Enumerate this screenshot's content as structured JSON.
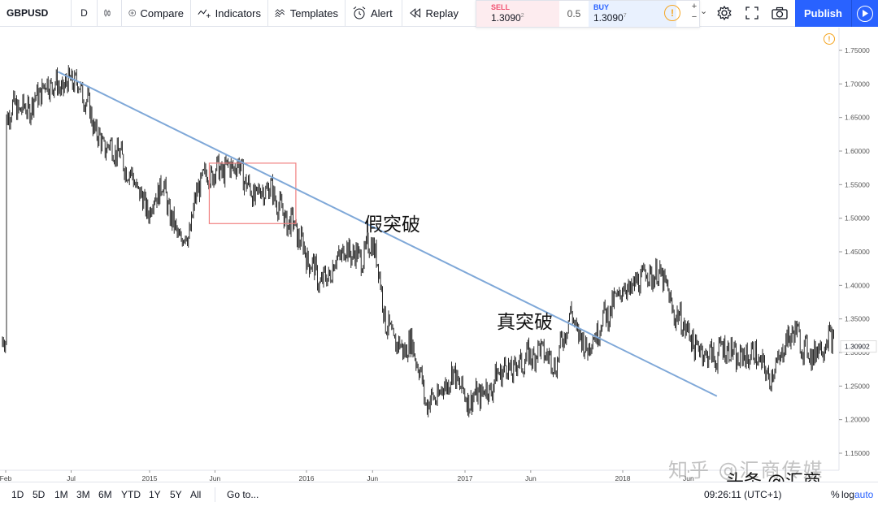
{
  "toolbar": {
    "symbol": "GBPUSD",
    "interval": "D",
    "compare": "Compare",
    "indicators": "Indicators",
    "templates": "Templates",
    "alert": "Alert",
    "replay": "Replay",
    "publish": "Publish"
  },
  "trade": {
    "sell_label": "SELL",
    "sell_price": "1.3090",
    "sell_sup": "2",
    "spread": "0.5",
    "buy_label": "BUY",
    "buy_price": "1.3090",
    "buy_sup": "7",
    "warn": "!",
    "qty_plus": "+",
    "qty_minus": "−",
    "chevron": "⌄"
  },
  "annotations": {
    "false_breakout": "假突破",
    "true_breakout": "真突破"
  },
  "watermark": {
    "text": "知乎 @汇商传媒",
    "overlay": "头条 @汇商"
  },
  "bottom": {
    "ranges": [
      "1D",
      "5D",
      "1M",
      "3M",
      "6M",
      "YTD",
      "1Y",
      "5Y",
      "All"
    ],
    "goto": "Go to...",
    "time": "09:26:11 (UTC+1)",
    "percent": "%",
    "log": "log",
    "auto": "auto"
  },
  "colors": {
    "accent": "#2962ff",
    "trendline": "#7fa8d8",
    "box": "#f08080",
    "candle": "#2a2a2a"
  },
  "chart_data": {
    "type": "candlestick",
    "symbol": "GBPUSD",
    "x_tick_labels": [
      "Feb",
      "Jul",
      "2015",
      "Jun",
      "2016",
      "Jun",
      "2017",
      "Jun",
      "2018",
      "Jun"
    ],
    "y_tick_labels": [
      "1.75000",
      "1.70000",
      "1.65000",
      "1.60000",
      "1.55000",
      "1.50000",
      "1.45000",
      "1.40000",
      "1.35000",
      "1.30000",
      "1.25000",
      "1.20000",
      "1.15000"
    ],
    "ylim": [
      1.14,
      1.785
    ],
    "last_price_label": "1.30902",
    "close_path": [
      [
        "2014-02",
        1.64
      ],
      [
        "2014-03",
        1.665
      ],
      [
        "2014-04",
        1.68
      ],
      [
        "2014-05",
        1.685
      ],
      [
        "2014-06",
        1.7
      ],
      [
        "2014-07",
        1.715
      ],
      [
        "2014-08",
        1.67
      ],
      [
        "2014-09",
        1.63
      ],
      [
        "2014-10",
        1.61
      ],
      [
        "2014-11",
        1.57
      ],
      [
        "2014-12",
        1.56
      ],
      [
        "2015-01",
        1.51
      ],
      [
        "2015-02",
        1.54
      ],
      [
        "2015-03",
        1.49
      ],
      [
        "2015-04",
        1.47
      ],
      [
        "2015-05",
        1.555
      ],
      [
        "2015-06",
        1.585
      ],
      [
        "2015-07",
        1.565
      ],
      [
        "2015-08",
        1.57
      ],
      [
        "2015-09",
        1.545
      ],
      [
        "2015-10",
        1.535
      ],
      [
        "2015-11",
        1.515
      ],
      [
        "2015-12",
        1.5
      ],
      [
        "2016-01",
        1.43
      ],
      [
        "2016-02",
        1.41
      ],
      [
        "2016-03",
        1.435
      ],
      [
        "2016-04",
        1.44
      ],
      [
        "2016-05",
        1.45
      ],
      [
        "2016-06",
        1.47
      ],
      [
        "2016-06-24",
        1.37
      ],
      [
        "2016-07",
        1.33
      ],
      [
        "2016-08",
        1.32
      ],
      [
        "2016-09",
        1.31
      ],
      [
        "2016-10",
        1.22
      ],
      [
        "2016-11",
        1.25
      ],
      [
        "2016-12",
        1.26
      ],
      [
        "2017-01",
        1.23
      ],
      [
        "2017-02",
        1.25
      ],
      [
        "2017-03",
        1.235
      ],
      [
        "2017-04",
        1.28
      ],
      [
        "2017-05",
        1.29
      ],
      [
        "2017-06",
        1.28
      ],
      [
        "2017-07",
        1.31
      ],
      [
        "2017-08",
        1.29
      ],
      [
        "2017-09",
        1.345
      ],
      [
        "2017-10",
        1.32
      ],
      [
        "2017-11",
        1.33
      ],
      [
        "2017-12",
        1.35
      ],
      [
        "2018-01",
        1.41
      ],
      [
        "2018-02",
        1.395
      ],
      [
        "2018-03",
        1.41
      ],
      [
        "2018-04",
        1.43
      ],
      [
        "2018-05",
        1.345
      ],
      [
        "2018-06",
        1.325
      ],
      [
        "2018-07",
        1.315
      ],
      [
        "2018-08",
        1.28
      ],
      [
        "2018-09",
        1.31
      ],
      [
        "2018-10",
        1.3
      ],
      [
        "2018-11",
        1.285
      ],
      [
        "2018-12",
        1.27
      ],
      [
        "2019-01",
        1.3
      ],
      [
        "2019-02",
        1.32
      ],
      [
        "2019-03",
        1.31
      ],
      [
        "2019-04",
        1.309
      ]
    ],
    "trendline": {
      "start": [
        "2014-07",
        1.718
      ],
      "end": [
        "2018-06",
        1.235
      ]
    },
    "highlight_box": {
      "from": "2015-06",
      "to": "2015-12",
      "low": 1.492,
      "high": 1.582
    }
  }
}
